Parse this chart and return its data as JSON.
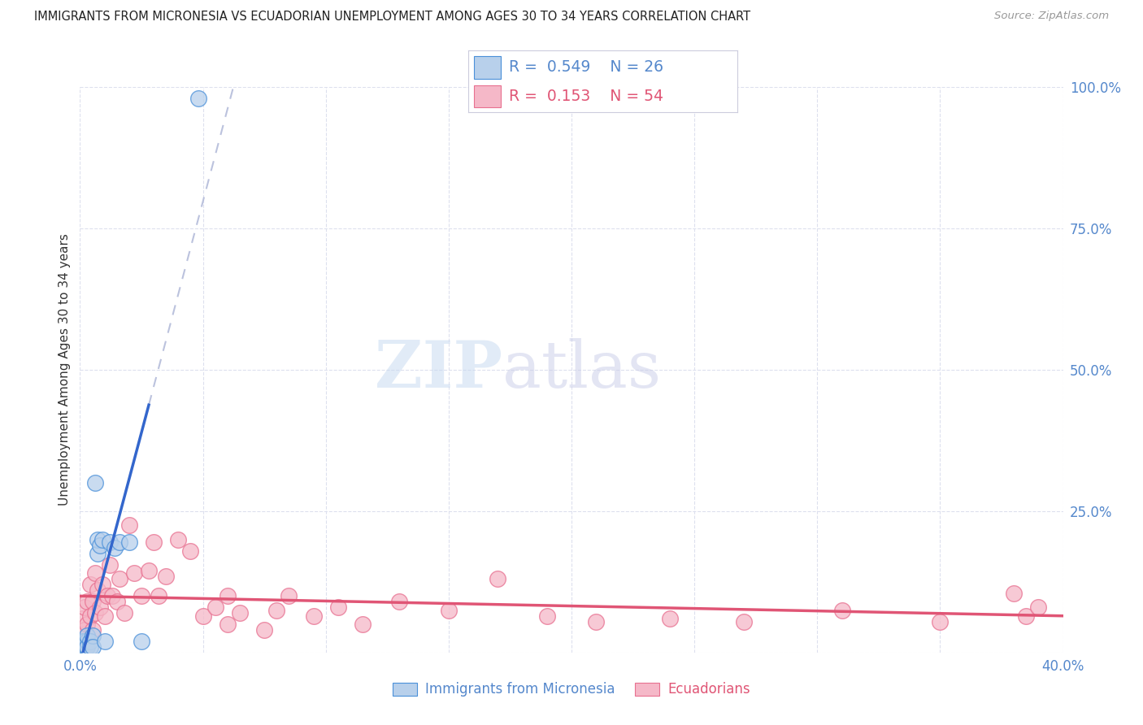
{
  "title": "IMMIGRANTS FROM MICRONESIA VS ECUADORIAN UNEMPLOYMENT AMONG AGES 30 TO 34 YEARS CORRELATION CHART",
  "source": "Source: ZipAtlas.com",
  "ylabel": "Unemployment Among Ages 30 to 34 years",
  "xlim": [
    0.0,
    0.4
  ],
  "ylim": [
    0.0,
    1.0
  ],
  "xticks": [
    0.0,
    0.05,
    0.1,
    0.15,
    0.2,
    0.25,
    0.3,
    0.35,
    0.4
  ],
  "yticks": [
    0.0,
    0.25,
    0.5,
    0.75,
    1.0
  ],
  "blue_R": 0.549,
  "blue_N": 26,
  "pink_R": 0.153,
  "pink_N": 54,
  "blue_fill": "#b8d0eb",
  "pink_fill": "#f5b8c8",
  "blue_edge": "#4a90d9",
  "pink_edge": "#e87090",
  "blue_line": "#3366cc",
  "pink_line": "#e05575",
  "dash_color": "#b0b8d8",
  "tick_color": "#5588cc",
  "grid_color": "#dde0ee",
  "bg_color": "#ffffff",
  "blue_x": [
    0.0008,
    0.001,
    0.0012,
    0.0015,
    0.002,
    0.002,
    0.0025,
    0.003,
    0.003,
    0.003,
    0.004,
    0.004,
    0.005,
    0.005,
    0.006,
    0.007,
    0.007,
    0.008,
    0.009,
    0.01,
    0.012,
    0.014,
    0.016,
    0.02,
    0.025,
    0.048
  ],
  "blue_y": [
    0.01,
    0.02,
    0.01,
    0.015,
    0.01,
    0.02,
    0.01,
    0.02,
    0.01,
    0.03,
    0.02,
    0.01,
    0.03,
    0.01,
    0.3,
    0.175,
    0.2,
    0.19,
    0.2,
    0.02,
    0.195,
    0.185,
    0.195,
    0.195,
    0.02,
    0.98
  ],
  "pink_x": [
    0.001,
    0.001,
    0.002,
    0.002,
    0.003,
    0.003,
    0.004,
    0.004,
    0.005,
    0.005,
    0.006,
    0.006,
    0.007,
    0.008,
    0.009,
    0.01,
    0.011,
    0.012,
    0.013,
    0.015,
    0.016,
    0.018,
    0.02,
    0.022,
    0.025,
    0.028,
    0.03,
    0.032,
    0.035,
    0.04,
    0.045,
    0.05,
    0.055,
    0.06,
    0.065,
    0.075,
    0.085,
    0.095,
    0.105,
    0.115,
    0.13,
    0.15,
    0.17,
    0.19,
    0.21,
    0.24,
    0.27,
    0.31,
    0.35,
    0.38,
    0.385,
    0.39,
    0.06,
    0.08
  ],
  "pink_y": [
    0.03,
    0.06,
    0.04,
    0.08,
    0.05,
    0.09,
    0.065,
    0.12,
    0.04,
    0.09,
    0.07,
    0.14,
    0.11,
    0.08,
    0.12,
    0.065,
    0.1,
    0.155,
    0.1,
    0.09,
    0.13,
    0.07,
    0.225,
    0.14,
    0.1,
    0.145,
    0.195,
    0.1,
    0.135,
    0.2,
    0.18,
    0.065,
    0.08,
    0.05,
    0.07,
    0.04,
    0.1,
    0.065,
    0.08,
    0.05,
    0.09,
    0.075,
    0.13,
    0.065,
    0.055,
    0.06,
    0.055,
    0.075,
    0.055,
    0.105,
    0.065,
    0.08,
    0.1,
    0.075
  ],
  "watermark_zip": "ZIP",
  "watermark_atlas": "atlas",
  "legend_label_blue": "Immigrants from Micronesia",
  "legend_label_pink": "Ecuadorians"
}
